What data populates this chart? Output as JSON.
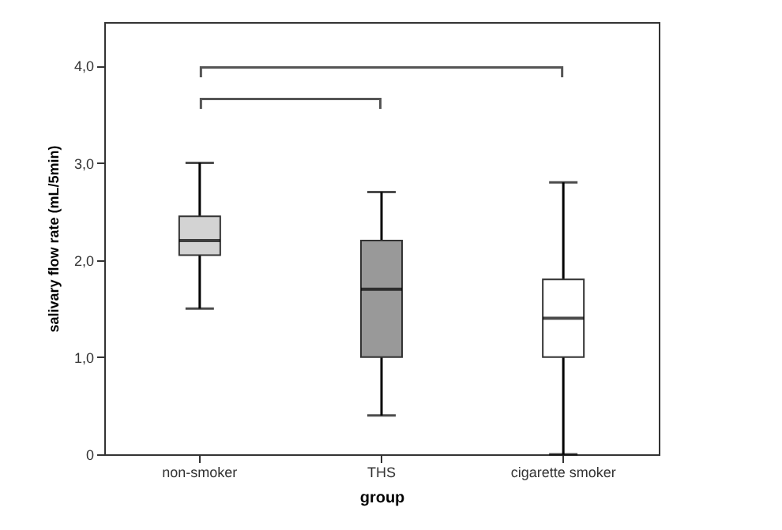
{
  "chart_data": {
    "type": "box",
    "xlabel": "group",
    "ylabel": "salivary flow rate (mL/5min)",
    "categories": [
      "non-smoker",
      "THS",
      "cigarette smoker"
    ],
    "boxes": [
      {
        "low": 1.5,
        "q1": 2.05,
        "median": 2.2,
        "q3": 2.45,
        "high": 3.0
      },
      {
        "low": 0.4,
        "q1": 1.0,
        "median": 1.7,
        "q3": 2.2,
        "high": 2.7
      },
      {
        "low": 0,
        "q1": 1.0,
        "median": 1.4,
        "q3": 1.8,
        "high": 2.8
      }
    ],
    "colors": [
      "#d3d3d3",
      "#999999",
      "#ffffff"
    ],
    "ylim": [
      0,
      4.45
    ],
    "yticks": [
      0,
      {
        "value": 1,
        "label": "1,0"
      },
      {
        "value": 2,
        "label": "2,0"
      },
      {
        "value": 3,
        "label": "3,0"
      },
      {
        "value": 4,
        "label": "4,0"
      }
    ],
    "grid": false
  }
}
